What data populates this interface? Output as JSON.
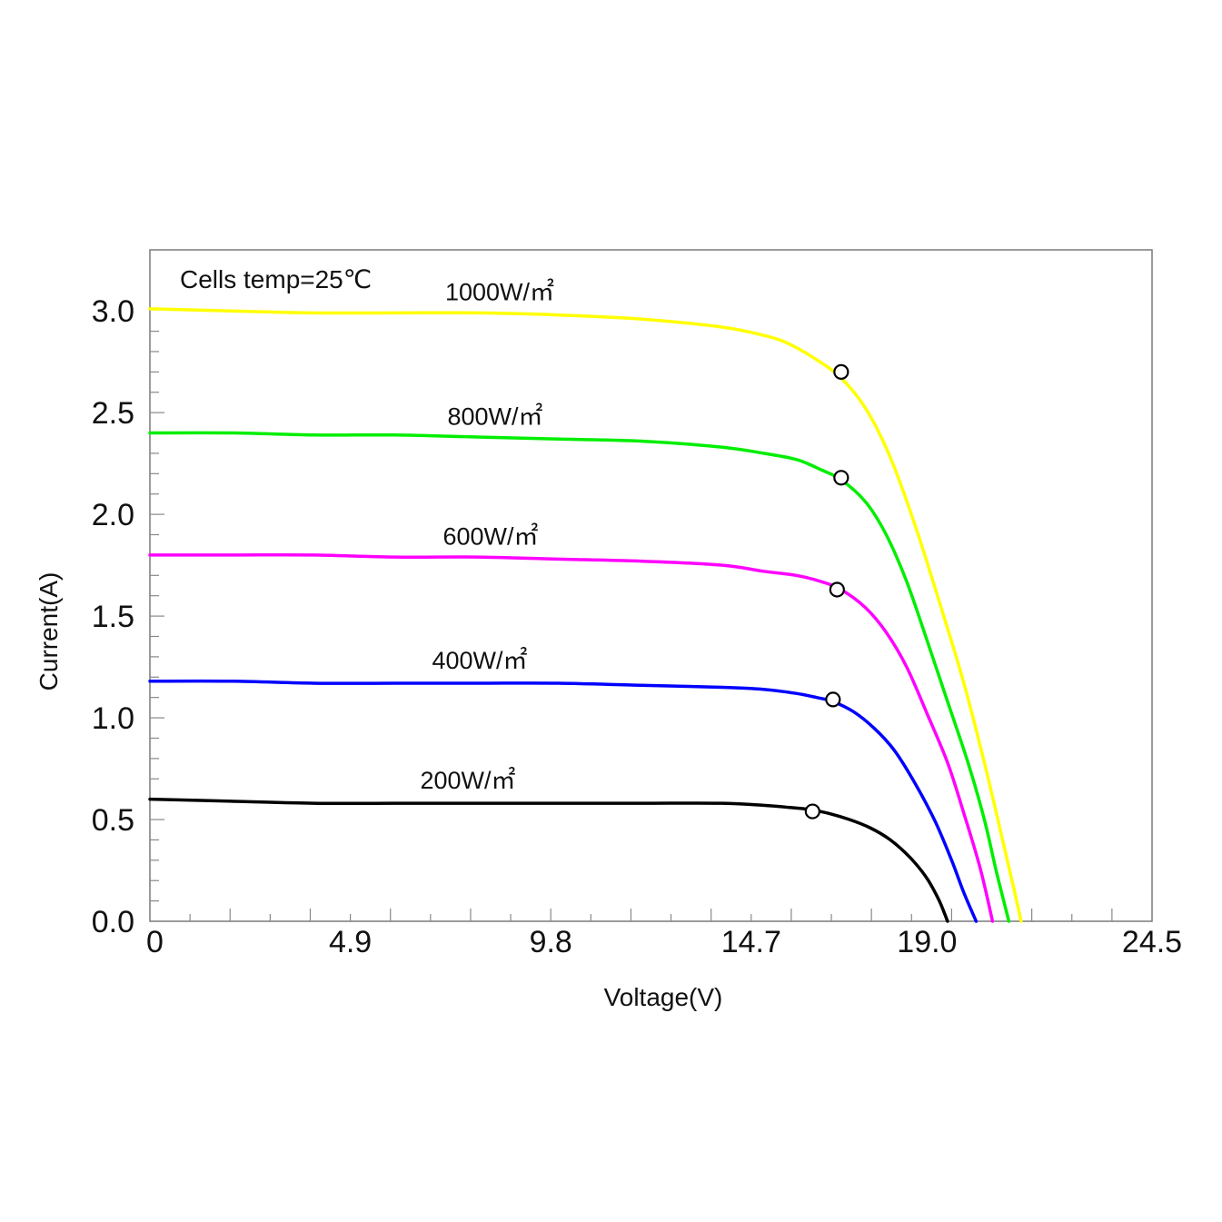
{
  "chart_data": {
    "type": "line",
    "annotation": "Cells temp=25℃",
    "xlabel": "Voltage(V)",
    "ylabel": "Current(A)",
    "xlim": [
      0,
      24.5
    ],
    "ylim": [
      0,
      3.3
    ],
    "x_ticks": [
      "0",
      "4.9",
      "9.8",
      "14.7",
      "19.0",
      "24.5"
    ],
    "x_tick_values": [
      0,
      4.9,
      9.8,
      14.7,
      19.0,
      24.5
    ],
    "y_ticks": [
      "0.0",
      "0.5",
      "1.0",
      "1.5",
      "2.0",
      "2.5",
      "3.0"
    ],
    "y_tick_values": [
      0,
      0.5,
      1.0,
      1.5,
      2.0,
      2.5,
      3.0
    ],
    "grid": false,
    "legend": "inline labels above curves",
    "series": [
      {
        "name": "1000W/㎡",
        "color": "#ffff00",
        "x": [
          0,
          2,
          4,
          6,
          8,
          10,
          12,
          14,
          15,
          15.6,
          16.3,
          16.9,
          17.5,
          18.1,
          18.7,
          19.3,
          19.9,
          20.4,
          20.8,
          21.1,
          21.3
        ],
        "y": [
          3.01,
          3.0,
          2.99,
          2.99,
          2.99,
          2.98,
          2.96,
          2.92,
          2.88,
          2.84,
          2.76,
          2.67,
          2.52,
          2.28,
          1.95,
          1.57,
          1.17,
          0.78,
          0.44,
          0.18,
          0.0
        ],
        "mpp": [
          16.9,
          2.7
        ]
      },
      {
        "name": "800W/㎡",
        "color": "#00ee00",
        "x": [
          0,
          2,
          4,
          6,
          8,
          10,
          12,
          14,
          15,
          15.8,
          16.4,
          16.9,
          17.5,
          18.0,
          18.5,
          19.0,
          19.5,
          20.0,
          20.4,
          20.7,
          21.0
        ],
        "y": [
          2.4,
          2.4,
          2.39,
          2.39,
          2.38,
          2.37,
          2.36,
          2.33,
          2.3,
          2.27,
          2.22,
          2.17,
          2.06,
          1.9,
          1.67,
          1.38,
          1.08,
          0.78,
          0.5,
          0.24,
          0.0
        ],
        "mpp": [
          16.9,
          2.18
        ]
      },
      {
        "name": "600W/㎡",
        "color": "#ff00ff",
        "x": [
          0,
          2,
          4,
          6,
          8,
          10,
          12,
          14,
          15,
          15.8,
          16.4,
          16.9,
          17.5,
          18.0,
          18.5,
          19.0,
          19.5,
          19.9,
          20.3,
          20.6
        ],
        "y": [
          1.8,
          1.8,
          1.8,
          1.79,
          1.79,
          1.78,
          1.77,
          1.75,
          1.72,
          1.7,
          1.67,
          1.63,
          1.54,
          1.42,
          1.25,
          1.02,
          0.78,
          0.53,
          0.26,
          0.0
        ],
        "mpp": [
          16.8,
          1.63
        ]
      },
      {
        "name": "400W/㎡",
        "color": "#0000ff",
        "x": [
          0,
          2,
          4,
          6,
          8,
          10,
          12,
          14,
          15,
          15.8,
          16.3,
          16.7,
          17.2,
          17.7,
          18.2,
          18.7,
          19.2,
          19.6,
          19.9,
          20.2
        ],
        "y": [
          1.18,
          1.18,
          1.17,
          1.17,
          1.17,
          1.17,
          1.16,
          1.15,
          1.14,
          1.12,
          1.1,
          1.08,
          1.03,
          0.95,
          0.84,
          0.68,
          0.49,
          0.3,
          0.14,
          0.0
        ],
        "mpp": [
          16.7,
          1.09
        ]
      },
      {
        "name": "200W/㎡",
        "color": "#000000",
        "x": [
          0,
          2,
          4,
          6,
          8,
          10,
          12,
          14,
          15,
          15.6,
          16.1,
          16.6,
          17.1,
          17.6,
          18.1,
          18.6,
          19.0,
          19.3,
          19.5
        ],
        "y": [
          0.6,
          0.59,
          0.58,
          0.58,
          0.58,
          0.58,
          0.58,
          0.58,
          0.57,
          0.56,
          0.55,
          0.53,
          0.5,
          0.46,
          0.4,
          0.31,
          0.21,
          0.1,
          0.0
        ],
        "mpp": [
          16.2,
          0.54
        ]
      }
    ]
  }
}
